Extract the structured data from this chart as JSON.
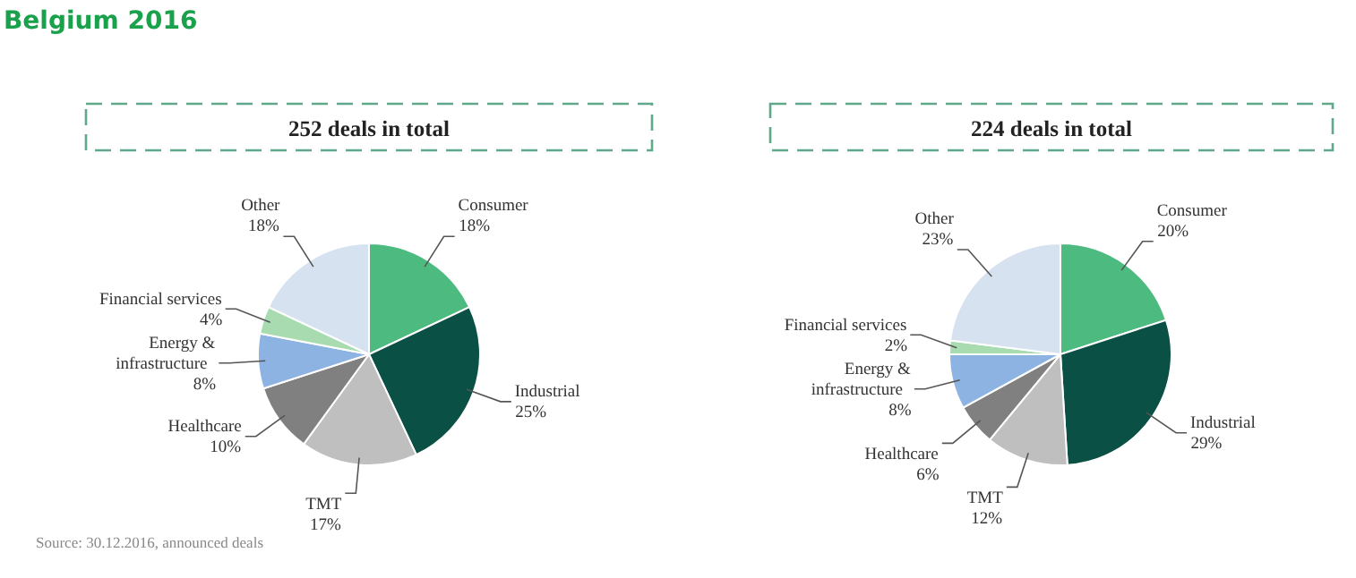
{
  "chart_data": [
    {
      "type": "pie",
      "title": "Belgium 2016",
      "subtitle": "252 deals in total",
      "categories": [
        "Consumer",
        "Industrial",
        "TMT",
        "Healthcare",
        "Energy & infrastructure",
        "Financial services",
        "Other"
      ],
      "values": [
        18,
        25,
        17,
        10,
        8,
        4,
        18
      ],
      "value_labels": [
        "18%",
        "25%",
        "17%",
        "10%",
        "8%",
        "4%",
        "18%"
      ],
      "colors": [
        "#4dbb80",
        "#0a5045",
        "#bfbfbf",
        "#808080",
        "#8db3e2",
        "#a8dcb0",
        "#d6e2f0"
      ],
      "annotations": [
        "Source: 30.12.2016, announced deals"
      ]
    },
    {
      "type": "pie",
      "subtitle": "224 deals in total",
      "categories": [
        "Consumer",
        "Industrial",
        "TMT",
        "Healthcare",
        "Energy & infrastructure",
        "Financial services",
        "Other"
      ],
      "values": [
        20,
        29,
        12,
        6,
        8,
        2,
        23
      ],
      "value_labels": [
        "20%",
        "29%",
        "12%",
        "6%",
        "8%",
        "2%",
        "23%"
      ],
      "colors": [
        "#4dbb80",
        "#0a5045",
        "#bfbfbf",
        "#808080",
        "#8db3e2",
        "#a8dcb0",
        "#d6e2f0"
      ]
    }
  ]
}
